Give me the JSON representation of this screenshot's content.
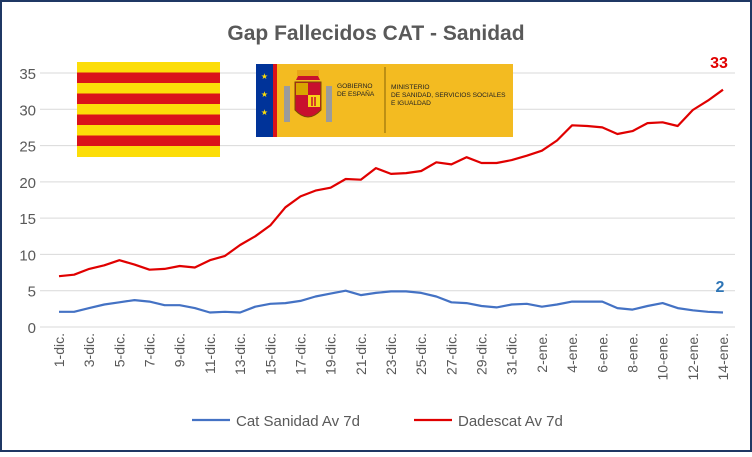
{
  "chart_data": {
    "type": "line",
    "title": "Gap Fallecidos  CAT - Sanidad",
    "xlabel": "",
    "ylabel": "",
    "ylim": [
      0,
      35
    ],
    "yticks": [
      0,
      5,
      10,
      15,
      20,
      25,
      30,
      35
    ],
    "grid": "horizontal",
    "legend": "bottom",
    "x": [
      "1-dic.",
      "2-dic.",
      "3-dic.",
      "4-dic.",
      "5-dic.",
      "6-dic.",
      "7-dic.",
      "8-dic.",
      "9-dic.",
      "10-dic.",
      "11-dic.",
      "12-dic.",
      "13-dic.",
      "14-dic.",
      "15-dic.",
      "16-dic.",
      "17-dic.",
      "18-dic.",
      "19-dic.",
      "20-dic.",
      "21-dic.",
      "22-dic.",
      "23-dic.",
      "24-dic.",
      "25-dic.",
      "26-dic.",
      "27-dic.",
      "28-dic.",
      "29-dic.",
      "30-dic.",
      "31-dic.",
      "1-ene.",
      "2-ene.",
      "3-ene.",
      "4-ene.",
      "5-ene.",
      "6-ene.",
      "7-ene.",
      "8-ene.",
      "9-ene.",
      "10-ene.",
      "11-ene.",
      "12-ene.",
      "13-ene.",
      "14-ene."
    ],
    "x_tick_labels": [
      "1-dic.",
      "3-dic.",
      "5-dic.",
      "7-dic.",
      "9-dic.",
      "11-dic.",
      "13-dic.",
      "15-dic.",
      "17-dic.",
      "19-dic.",
      "21-dic.",
      "23-dic.",
      "25-dic.",
      "27-dic.",
      "29-dic.",
      "31-dic.",
      "2-ene.",
      "4-ene.",
      "6-ene.",
      "8-ene.",
      "10-ene.",
      "12-ene.",
      "14-ene."
    ],
    "series": [
      {
        "name": "Cat Sanidad Av 7d",
        "color": "#4472c4",
        "end_label": "2",
        "values": [
          2.1,
          2.1,
          2.6,
          3.1,
          3.4,
          3.7,
          3.5,
          3.0,
          3.0,
          2.6,
          2.0,
          2.1,
          2.0,
          2.8,
          3.2,
          3.3,
          3.6,
          4.2,
          4.6,
          5.0,
          4.4,
          4.7,
          4.9,
          4.9,
          4.7,
          4.2,
          3.4,
          3.3,
          2.9,
          2.7,
          3.1,
          3.2,
          2.8,
          3.1,
          3.5,
          3.5,
          3.5,
          2.6,
          2.4,
          2.9,
          3.3,
          2.6,
          2.3,
          2.1,
          2.0
        ]
      },
      {
        "name": "Dadescat Av 7d",
        "color": "#e00000",
        "end_label": "33",
        "values": [
          7.0,
          7.2,
          8.0,
          8.5,
          9.2,
          8.6,
          7.9,
          8.0,
          8.4,
          8.2,
          9.2,
          9.8,
          11.3,
          12.5,
          14.0,
          16.5,
          18.0,
          18.8,
          19.2,
          20.4,
          20.3,
          21.9,
          21.1,
          21.2,
          21.5,
          22.7,
          22.4,
          23.4,
          22.6,
          22.6,
          23.0,
          23.6,
          24.3,
          25.7,
          27.8,
          27.7,
          27.5,
          26.6,
          27.0,
          28.1,
          28.2,
          27.7,
          29.9,
          31.2,
          32.7
        ]
      }
    ]
  },
  "logos": {
    "catalan_flag": {
      "stripe_red": "#da121a",
      "stripe_yellow": "#fcdd09"
    },
    "spain_ministry": {
      "line1": "GOBIERNO",
      "line2": "DE ESPAÑA",
      "ministry_line1": "MINISTERIO",
      "ministry_line2": "DE SANIDAD, SERVICIOS SOCIALES",
      "ministry_line3": "E IGUALDAD",
      "background": "#f3bb21",
      "eu_blue": "#003399"
    }
  },
  "colors": {
    "axis_text": "#595959",
    "gridline": "#d9d9d9",
    "border": "#1f3864",
    "title": "#595959"
  }
}
